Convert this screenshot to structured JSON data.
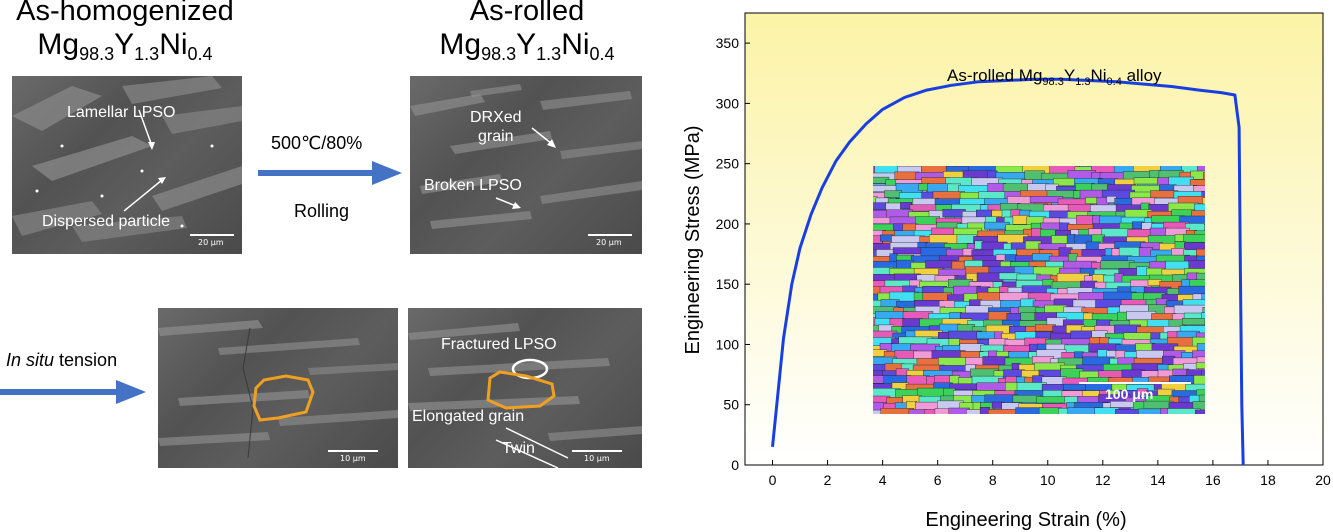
{
  "top_left_title": {
    "line1": "As-homogenized",
    "base": "Mg",
    "s1": "98.3",
    "e2": "Y",
    "s2": "1.3",
    "e3": "Ni",
    "s3": "0.4"
  },
  "top_mid_title": {
    "line1": "As-rolled",
    "base": "Mg",
    "s1": "98.3",
    "e2": "Y",
    "s2": "1.3",
    "e3": "Ni",
    "s3": "0.4"
  },
  "img_homog": {
    "label_lamellar": "Lamellar LPSO",
    "label_particle": "Dispersed particle",
    "scale": "20 μm"
  },
  "img_rolled": {
    "label_drx_1": "DRXed",
    "label_drx_2": "grain",
    "label_broken": "Broken LPSO",
    "scale": "20 μm"
  },
  "process": {
    "condition": "500℃/80%",
    "method": "Rolling"
  },
  "tension": {
    "italic": "In situ",
    "rest": " tension"
  },
  "img_tension_1": {
    "scale": "10 μm"
  },
  "img_tension_2": {
    "label_fractured": "Fractured LPSO",
    "label_elongated": "Elongated grain",
    "label_twin": "Twin",
    "scale": "10 μm"
  },
  "chart_data": {
    "type": "line",
    "xlabel": "Engineering Strain (%)",
    "ylabel": "Engineering Stress (MPa)",
    "xlim": [
      -1,
      20
    ],
    "ylim": [
      0,
      375
    ],
    "xticks": [
      0,
      2,
      4,
      6,
      8,
      10,
      12,
      14,
      16,
      18,
      20
    ],
    "yticks": [
      0,
      50,
      100,
      150,
      200,
      250,
      300,
      350
    ],
    "annotation": {
      "base": "As-rolled Mg",
      "s1": "98.3",
      "e2": "Y",
      "s2": "1.3",
      "e3": "Ni",
      "s3": "0.4",
      "tail": " alloy"
    },
    "inset_scale": "100 μm",
    "series": [
      {
        "color": "#1a3fe0",
        "x": [
          0,
          0.2,
          0.4,
          0.7,
          1.0,
          1.4,
          1.8,
          2.3,
          2.8,
          3.4,
          4.0,
          4.8,
          5.6,
          6.5,
          7.5,
          8.5,
          9.5,
          10.5,
          11.5,
          12.5,
          13.5,
          14.5,
          15.5,
          16.3,
          16.8,
          16.95,
          17.0,
          17.05,
          17.1
        ],
        "y": [
          15,
          60,
          105,
          150,
          180,
          208,
          230,
          252,
          268,
          283,
          295,
          305,
          311,
          315,
          318,
          319,
          320,
          320,
          319,
          318,
          316,
          314,
          311,
          309,
          307,
          280,
          160,
          50,
          0
        ]
      }
    ]
  }
}
